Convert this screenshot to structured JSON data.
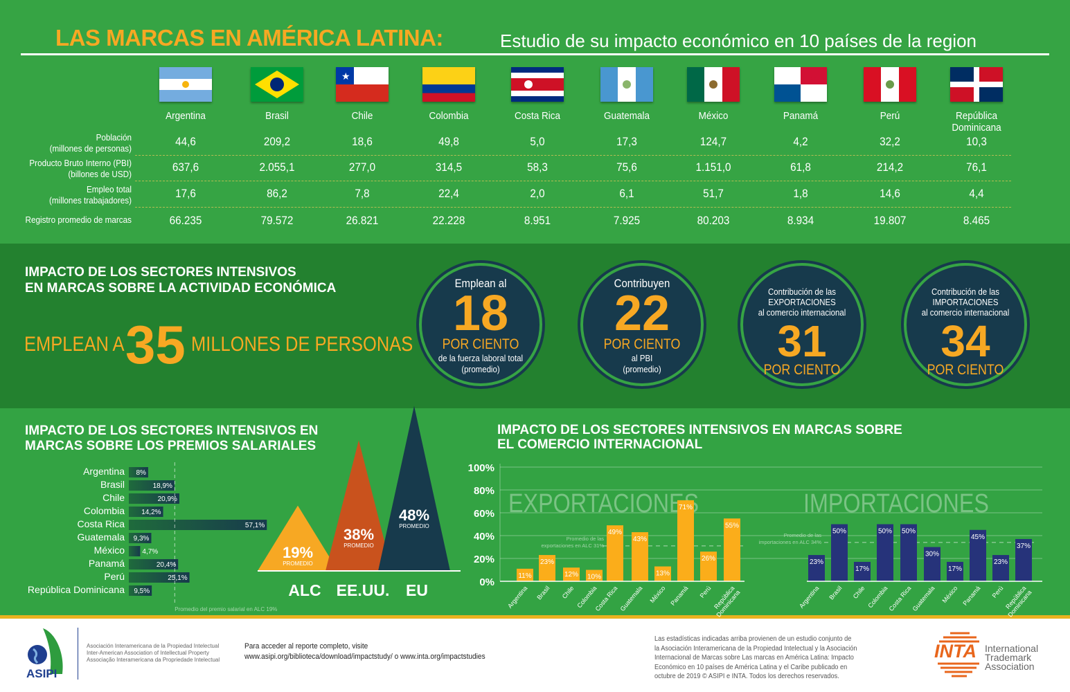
{
  "title": {
    "main": "LAS MARCAS EN AMÉRICA LATINA:",
    "sub": "Estudio de su impacto económico en 10 países de la region"
  },
  "countries": [
    "Argentina",
    "Brasil",
    "Chile",
    "Colombia",
    "Costa Rica",
    "Guatemala",
    "México",
    "Panamá",
    "Perú",
    "República Dominicana"
  ],
  "table": {
    "rows": [
      {
        "label": "Población",
        "sublabel": "(millones de personas)",
        "values": [
          "44,6",
          "209,2",
          "18,6",
          "49,8",
          "5,0",
          "17,3",
          "124,7",
          "4,2",
          "32,2",
          "10,3"
        ]
      },
      {
        "label": "Producto Bruto Interno (PBI)",
        "sublabel": "(billones de USD)",
        "values": [
          "637,6",
          "2.055,1",
          "277,0",
          "314,5",
          "58,3",
          "75,6",
          "1.151,0",
          "61,8",
          "214,2",
          "76,1"
        ]
      },
      {
        "label": "Empleo total",
        "sublabel": "(millones trabajadores)",
        "values": [
          "17,6",
          "86,2",
          "7,8",
          "22,4",
          "2,0",
          "6,1",
          "51,7",
          "1,8",
          "14,6",
          "4,4"
        ]
      },
      {
        "label": "Registro promedio de marcas",
        "sublabel": "",
        "values": [
          "66.235",
          "79.572",
          "26.821",
          "22.228",
          "8.951",
          "7.925",
          "80.203",
          "8.934",
          "19.807",
          "8.465"
        ]
      }
    ]
  },
  "impact": {
    "heading_line1": "IMPACTO DE LOS SECTORES INTENSIVOS",
    "heading_line2": "EN MARCAS SOBRE LA ACTIVIDAD ECONÓMICA",
    "employ_prefix": "EMPLEAN A",
    "employ_number": "35",
    "employ_suffix": "MILLONES DE PERSONAS",
    "circles": [
      {
        "top": [
          "Emplean al"
        ],
        "number": "18",
        "unit": "POR CIENTO",
        "bottom": [
          "de la fuerza laboral total",
          "(promedio)"
        ]
      },
      {
        "top": [
          "Contribuyen"
        ],
        "number": "22",
        "unit": "POR CIENTO",
        "bottom": [
          "al PBI",
          "(promedio)"
        ]
      },
      {
        "top": [
          "Contribución de las",
          "EXPORTACIONES",
          "al comercio internacional"
        ],
        "number": "31",
        "unit": "POR CIENTO",
        "bottom": []
      },
      {
        "top": [
          "Contribución de las",
          "IMPORTACIONES",
          "al comercio internacional"
        ],
        "number": "34",
        "unit": "POR CIENTO",
        "bottom": []
      }
    ]
  },
  "wage": {
    "heading_line1": "IMPACTO DE LOS SECTORES INTENSIVOS EN",
    "heading_line2": "MARCAS SOBRE LOS PREMIOS SALARIALES"
  },
  "trade": {
    "heading_line1": "IMPACTO DE LOS SECTORES INTENSIVOS EN MARCAS SOBRE",
    "heading_line2": "EL COMERCIO INTERNACIONAL"
  },
  "colors": {
    "green": "#36a444",
    "dark_green": "#23812f",
    "gold": "#f7a823",
    "navy": "#173a4c",
    "export_bar": "#fbad1a",
    "import_bar": "#26337a",
    "us_triangle": "#c9521d"
  },
  "chart_data": [
    {
      "type": "bar",
      "orientation": "horizontal",
      "categories": [
        "Argentina",
        "Brasil",
        "Chile",
        "Colombia",
        "Costa Rica",
        "Guatemala",
        "México",
        "Panamá",
        "Perú",
        "República Dominicana"
      ],
      "values": [
        8,
        18.9,
        20.9,
        14.2,
        57.1,
        9.3,
        4.7,
        20.4,
        25.1,
        9.5
      ],
      "value_labels": [
        "8%",
        "18,9%",
        "20,9%",
        "14,2%",
        "57,1%",
        "9,3%",
        "4,7%",
        "20,4%",
        "25,1%",
        "9,5%"
      ],
      "reference_line": {
        "value": 19,
        "label": "Promedio del premio salarial en ALC 19%"
      }
    },
    {
      "type": "bar",
      "note": "triangles",
      "categories": [
        "ALC",
        "EE.UU.",
        "EU"
      ],
      "values": [
        19,
        38,
        48
      ],
      "value_labels": [
        "19%",
        "38%",
        "48%"
      ],
      "sublabel": "PROMEDIO"
    },
    {
      "type": "bar",
      "title": "EXPORTACIONES",
      "categories": [
        "Argentina",
        "Brasil",
        "Chile",
        "Colombia",
        "Costa Rica",
        "Guatemala",
        "México",
        "Panamá",
        "Perú",
        "República\nDominicana"
      ],
      "values": [
        11,
        23,
        12,
        10,
        49,
        43,
        13,
        71,
        26,
        55
      ],
      "ylim": [
        0,
        100
      ],
      "yticks": [
        "0%",
        "20%",
        "40%",
        "60%",
        "80%",
        "100%"
      ],
      "grid": true,
      "reference_line": {
        "value": 31,
        "label": [
          "Promedio de las",
          "exportaciones en ALC 31%"
        ]
      }
    },
    {
      "type": "bar",
      "title": "IMPORTACIONES",
      "categories": [
        "Argentina",
        "Brasil",
        "Chile",
        "Colombia",
        "Costa Rica",
        "Guatemala",
        "México",
        "Panamá",
        "Perú",
        "República\nDominicana"
      ],
      "values": [
        23,
        50,
        17,
        50,
        50,
        30,
        17,
        45,
        23,
        37
      ],
      "ylim": [
        0,
        100
      ],
      "grid": true,
      "reference_line": {
        "value": 34,
        "label": [
          "Promedio de las",
          "importaciones en ALC 34%"
        ]
      }
    }
  ],
  "footer": {
    "asipi_logo": "ASIPI",
    "asipi_names": [
      "Asociación Interamericana de la Propiedad Intelectual",
      "Inter-American Association of Intellectual Property",
      "Associação Interamericana da Propriedade Intelectual"
    ],
    "access_line1": "Para acceder al reporte completo, visite",
    "access_line2": "www.asipi.org/biblioteca/download/impactstudy/  o www.inta.org/impactstudies",
    "disclaimer": [
      "Las estadísticas indicadas arriba provienen de un estudio conjunto de",
      "la Asociación Interamericana de la Propiedad Intelectual y la Asociación",
      "Internacional de Marcas sobre Las marcas en América Latina: Impacto",
      "Económico en 10 países de América Latina y el Caribe publicado en",
      "octubre de 2019 © ASIPI e INTA. Todos los derechos reservados."
    ],
    "inta_logo": "INTA",
    "inta_name": [
      "International",
      "Trademark",
      "Association"
    ]
  }
}
